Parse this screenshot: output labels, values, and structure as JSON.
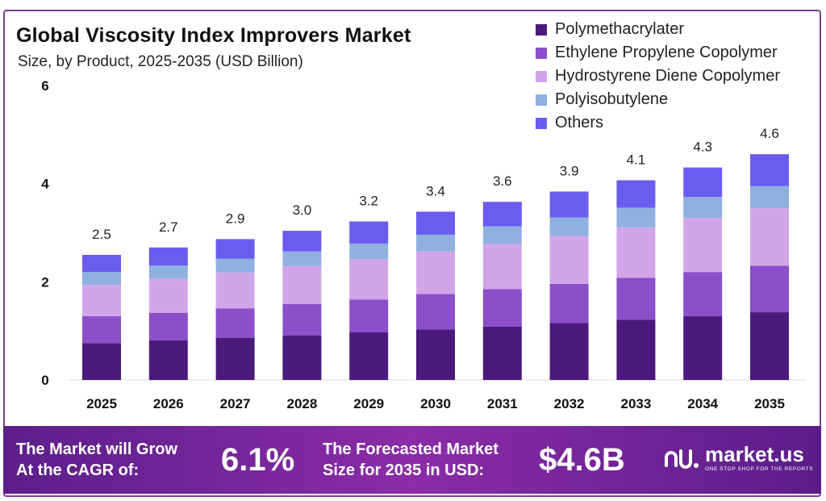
{
  "header": {
    "title": "Global Viscosity Index Improvers Market",
    "subtitle": "Size, by Product, 2025-2035 (USD Billion)"
  },
  "chart_data": {
    "type": "bar",
    "stacked": true,
    "categories": [
      "2025",
      "2026",
      "2027",
      "2028",
      "2029",
      "2030",
      "2031",
      "2032",
      "2033",
      "2034",
      "2035"
    ],
    "series": [
      {
        "name": "Polymethacrylater",
        "color": "#4a1a7c",
        "values": [
          0.75,
          0.81,
          0.86,
          0.91,
          0.97,
          1.03,
          1.09,
          1.16,
          1.23,
          1.3,
          1.38
        ]
      },
      {
        "name": "Ethylene Propylene Copolymer",
        "color": "#8a4fc9",
        "values": [
          0.55,
          0.56,
          0.6,
          0.64,
          0.67,
          0.72,
          0.76,
          0.8,
          0.85,
          0.9,
          0.95
        ]
      },
      {
        "name": "Hydrostyrene Diene Copolymer",
        "color": "#d1a6e8",
        "values": [
          0.64,
          0.69,
          0.73,
          0.77,
          0.82,
          0.87,
          0.92,
          0.97,
          1.03,
          1.1,
          1.17
        ]
      },
      {
        "name": "Polyisobutylene",
        "color": "#90b0e0",
        "values": [
          0.26,
          0.27,
          0.28,
          0.3,
          0.32,
          0.34,
          0.36,
          0.38,
          0.4,
          0.43,
          0.45
        ]
      },
      {
        "name": "Others",
        "color": "#6b5cf0",
        "values": [
          0.35,
          0.37,
          0.4,
          0.42,
          0.45,
          0.47,
          0.5,
          0.53,
          0.56,
          0.6,
          0.65
        ]
      }
    ],
    "totals": [
      "2.5",
      "2.7",
      "2.9",
      "3.0",
      "3.2",
      "3.4",
      "3.6",
      "3.9",
      "4.1",
      "4.3",
      "4.6"
    ],
    "ylim": [
      0,
      6
    ],
    "yticks": [
      0,
      2,
      4,
      6
    ],
    "grid": false,
    "legend_position": "top-right",
    "xlabel": "",
    "ylabel": ""
  },
  "footer": {
    "cagr_line1": "The Market will Grow",
    "cagr_line2": "At the CAGR of:",
    "cagr_value": "6.1%",
    "size_line1": "The Forecasted Market",
    "size_line2": "Size for 2035 in USD:",
    "size_value": "$4.6B",
    "brand_name": "market.us",
    "brand_tagline": "ONE STOP SHOP FOR THE REPORTS"
  }
}
